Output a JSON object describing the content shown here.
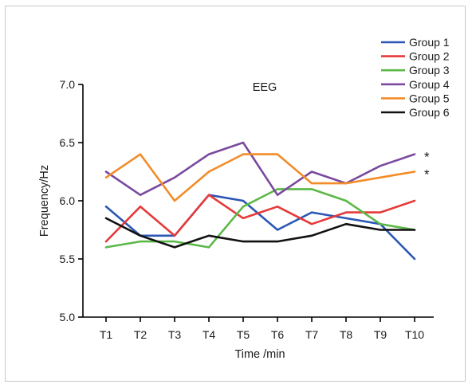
{
  "chart_data": {
    "type": "line",
    "title": "EEG",
    "xlabel": "Time /min",
    "ylabel": "Frequency/Hz",
    "categories": [
      "T1",
      "T2",
      "T3",
      "T4",
      "T5",
      "T6",
      "T7",
      "T8",
      "T9",
      "T10"
    ],
    "ylim": [
      5.0,
      7.0
    ],
    "yticks": [
      "5.0",
      "5.5",
      "6.0",
      "6.5",
      "7.0"
    ],
    "grid": false,
    "legend_position": "top-right",
    "series": [
      {
        "name": "Group 1",
        "color": "#2b57b5",
        "values": [
          5.95,
          5.7,
          5.7,
          6.05,
          6.0,
          5.75,
          5.9,
          5.85,
          5.8,
          5.5
        ]
      },
      {
        "name": "Group 2",
        "color": "#e53a3a",
        "values": [
          5.65,
          5.95,
          5.7,
          6.05,
          5.85,
          5.95,
          5.8,
          5.9,
          5.9,
          6.0
        ]
      },
      {
        "name": "Group 3",
        "color": "#5cb848",
        "values": [
          5.6,
          5.65,
          5.65,
          5.6,
          5.95,
          6.1,
          6.1,
          6.0,
          5.8,
          5.75
        ]
      },
      {
        "name": "Group 4",
        "color": "#7a4a9f",
        "values": [
          6.25,
          6.05,
          6.2,
          6.4,
          6.5,
          6.05,
          6.25,
          6.15,
          6.3,
          6.4
        ]
      },
      {
        "name": "Group 5",
        "color": "#f28c28",
        "values": [
          6.2,
          6.4,
          6.0,
          6.25,
          6.4,
          6.4,
          6.15,
          6.15,
          6.2,
          6.25
        ]
      },
      {
        "name": "Group 6",
        "color": "#111111",
        "values": [
          5.85,
          5.7,
          5.6,
          5.7,
          5.65,
          5.65,
          5.7,
          5.8,
          5.75,
          5.75
        ]
      }
    ],
    "annotations": [
      {
        "text": "*",
        "series": "Group 4"
      },
      {
        "text": "*",
        "series": "Group 5"
      }
    ]
  }
}
